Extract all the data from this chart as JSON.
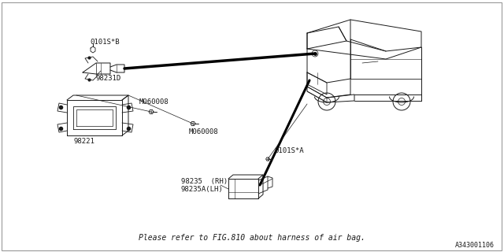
{
  "bg_color": "#ffffff",
  "line_color": "#1a1a1a",
  "text_color": "#1a1a1a",
  "footer_text": "Please refer to FIG.810 about harness of air bag.",
  "ref_code": "A343001106",
  "labels": {
    "top_sensor_id": "0101S*B",
    "top_sensor_part": "98231D",
    "ecm_label": "98221",
    "bolt1_label": "M060008",
    "bolt2_label": "M060008",
    "bottom_sensor_id": "0101S*A",
    "bottom_part_rh": "98235  (RH)",
    "bottom_part_lh": "98235A(LH)"
  },
  "font_size": 6.5,
  "footer_font_size": 7
}
